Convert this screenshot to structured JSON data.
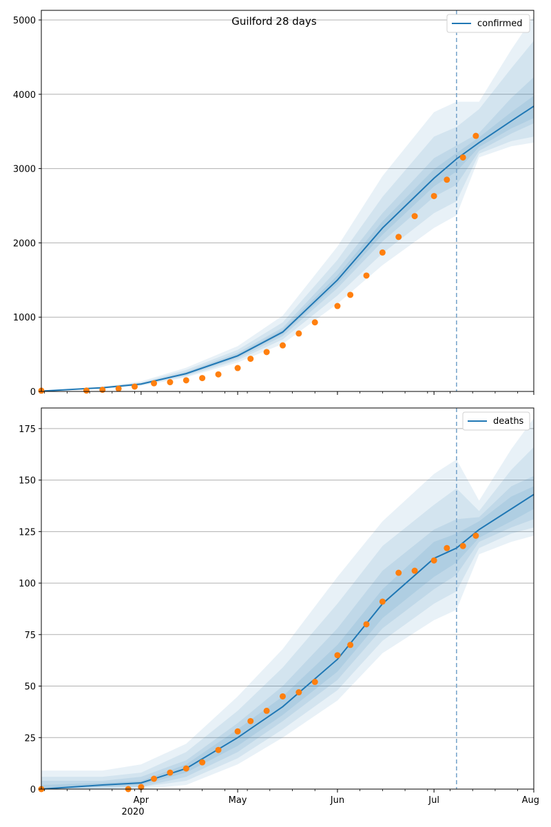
{
  "chart_data": [
    {
      "type": "line",
      "title": "Guilford 28 days",
      "series_label": "confirmed",
      "xlabel": "",
      "ylabel": "",
      "x_range": [
        "2020-03-01",
        "2020-08-01"
      ],
      "ylim": [
        0,
        5130
      ],
      "y_ticks": [
        0,
        1000,
        2000,
        3000,
        4000,
        5000
      ],
      "y_tick_labels": [
        "0",
        "1000",
        "2000",
        "3000",
        "4000",
        "5000"
      ],
      "grid": "horizontal",
      "legend_position": "top-right",
      "forecast_start": "2020-07-08",
      "model_line": {
        "x": [
          "2020-03-01",
          "2020-03-20",
          "2020-04-01",
          "2020-04-15",
          "2020-05-01",
          "2020-05-15",
          "2020-06-01",
          "2020-06-15",
          "2020-07-01",
          "2020-07-08",
          "2020-07-15",
          "2020-07-25",
          "2020-08-01"
        ],
        "y": [
          5,
          50,
          100,
          240,
          480,
          800,
          1500,
          2200,
          2870,
          3130,
          3350,
          3640,
          3840
        ]
      },
      "bands": [
        {
          "lower": [
            2,
            35,
            75,
            190,
            390,
            640,
            1180,
            1700,
            2200,
            2370,
            3150,
            3300,
            3350
          ],
          "upper": [
            12,
            65,
            135,
            320,
            610,
            1020,
            1950,
            2900,
            3760,
            3900,
            3900,
            4600,
            5050
          ]
        },
        {
          "lower": [
            3,
            40,
            85,
            205,
            420,
            700,
            1290,
            1860,
            2400,
            2560,
            3200,
            3370,
            3430
          ],
          "upper": [
            10,
            58,
            120,
            290,
            560,
            930,
            1770,
            2620,
            3430,
            3560,
            3800,
            4350,
            4720
          ]
        },
        {
          "lower": [
            4,
            45,
            92,
            220,
            445,
            745,
            1390,
            2020,
            2620,
            2780,
            3240,
            3470,
            3610
          ],
          "upper": [
            8,
            55,
            110,
            265,
            520,
            860,
            1640,
            2400,
            3140,
            3310,
            3480,
            3950,
            4230
          ]
        },
        {
          "lower": [
            4,
            47,
            96,
            230,
            465,
            775,
            1450,
            2110,
            2760,
            2960,
            3290,
            3540,
            3680
          ],
          "upper": [
            7,
            53,
            105,
            252,
            500,
            830,
            1560,
            2290,
            2990,
            3210,
            3420,
            3760,
            3980
          ]
        }
      ],
      "observed": {
        "x": [
          "2020-03-01",
          "2020-03-15",
          "2020-03-20",
          "2020-03-25",
          "2020-03-30",
          "2020-04-05",
          "2020-04-10",
          "2020-04-15",
          "2020-04-20",
          "2020-04-25",
          "2020-05-01",
          "2020-05-05",
          "2020-05-10",
          "2020-05-15",
          "2020-05-20",
          "2020-05-25",
          "2020-06-01",
          "2020-06-05",
          "2020-06-10",
          "2020-06-15",
          "2020-06-20",
          "2020-06-25",
          "2020-07-01",
          "2020-07-05",
          "2020-07-10",
          "2020-07-14"
        ],
        "y": [
          10,
          12,
          22,
          38,
          65,
          110,
          125,
          150,
          180,
          230,
          315,
          440,
          530,
          620,
          780,
          930,
          1150,
          1300,
          1560,
          1870,
          2080,
          2360,
          2630,
          2850,
          3150,
          3440
        ]
      }
    },
    {
      "type": "line",
      "title": "",
      "series_label": "deaths",
      "xlabel": "",
      "ylabel": "",
      "x_range": [
        "2020-03-01",
        "2020-08-01"
      ],
      "ylim": [
        0,
        185
      ],
      "y_ticks": [
        0,
        25,
        50,
        75,
        100,
        125,
        150,
        175
      ],
      "y_tick_labels": [
        "0",
        "25",
        "50",
        "75",
        "100",
        "125",
        "150",
        "175"
      ],
      "x_ticks": [
        "2020-04-01",
        "2020-05-01",
        "2020-06-01",
        "2020-07-01",
        "2020-08-01"
      ],
      "x_tick_labels": [
        "Apr",
        "May",
        "Jun",
        "Jul",
        "Aug"
      ],
      "x_year_label": "2020",
      "grid": "horizontal",
      "legend_position": "top-right",
      "forecast_start": "2020-07-08",
      "model_line": {
        "x": [
          "2020-03-01",
          "2020-03-20",
          "2020-04-01",
          "2020-04-15",
          "2020-05-01",
          "2020-05-15",
          "2020-06-01",
          "2020-06-15",
          "2020-07-01",
          "2020-07-08",
          "2020-07-15",
          "2020-07-25",
          "2020-08-01"
        ],
        "y": [
          0,
          2,
          3,
          10,
          25,
          40,
          63,
          90,
          112,
          117,
          126,
          136,
          143
        ]
      },
      "bands": [
        {
          "lower": [
            0,
            0,
            0,
            2,
            12,
            25,
            43,
            66,
            82,
            87,
            114,
            120,
            123
          ],
          "upper": [
            9,
            9,
            12,
            22,
            45,
            68,
            103,
            130,
            153,
            160,
            140,
            165,
            180
          ]
        },
        {
          "lower": [
            0,
            0,
            1,
            4,
            15,
            29,
            48,
            72,
            90,
            96,
            117,
            124,
            127
          ],
          "upper": [
            6,
            6,
            8,
            18,
            38,
            59,
            90,
            118,
            138,
            146,
            135,
            155,
            166
          ]
        },
        {
          "lower": [
            0,
            1,
            1,
            6,
            18,
            33,
            53,
            78,
            97,
            104,
            120,
            127,
            131
          ],
          "upper": [
            4,
            4,
            6,
            14,
            32,
            50,
            78,
            106,
            126,
            131,
            132,
            147,
            152
          ]
        },
        {
          "lower": [
            0,
            1,
            2,
            8,
            21,
            36,
            57,
            83,
            103,
            110,
            122,
            130,
            136
          ],
          "upper": [
            2,
            3,
            4,
            12,
            29,
            45,
            70,
            97,
            120,
            124,
            130,
            142,
            147
          ]
        }
      ],
      "observed": {
        "x": [
          "2020-03-01",
          "2020-03-28",
          "2020-04-01",
          "2020-04-05",
          "2020-04-10",
          "2020-04-15",
          "2020-04-20",
          "2020-04-25",
          "2020-05-01",
          "2020-05-05",
          "2020-05-10",
          "2020-05-15",
          "2020-05-20",
          "2020-05-25",
          "2020-06-01",
          "2020-06-05",
          "2020-06-10",
          "2020-06-15",
          "2020-06-20",
          "2020-06-25",
          "2020-07-01",
          "2020-07-05",
          "2020-07-10",
          "2020-07-14"
        ],
        "y": [
          0,
          0,
          1,
          5,
          8,
          10,
          13,
          19,
          28,
          33,
          38,
          45,
          47,
          52,
          65,
          70,
          80,
          91,
          105,
          106,
          111,
          117,
          118,
          123
        ]
      }
    }
  ],
  "colors": {
    "line": "#1f77b4",
    "band": "#1f77b4",
    "observed": "#ff7f0e",
    "forecast_line": "#7aa6cc",
    "grid": "#b0b0b0",
    "axis": "#000000"
  }
}
